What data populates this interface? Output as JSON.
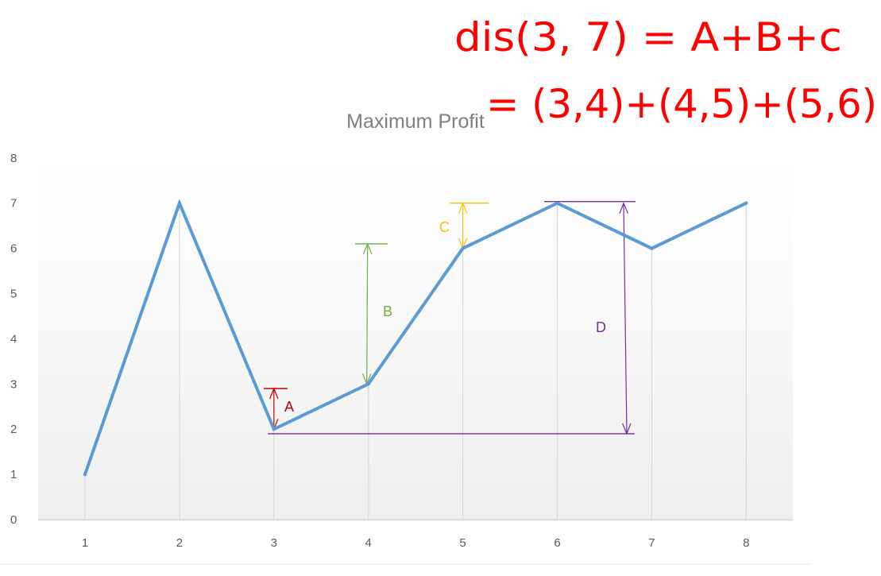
{
  "chart_data": {
    "type": "line",
    "title": "Maximum Profit",
    "xlabel": "",
    "ylabel": "",
    "categories": [
      "1",
      "2",
      "3",
      "4",
      "5",
      "6",
      "7",
      "8"
    ],
    "series": [
      {
        "values": [
          1,
          7,
          2,
          3,
          6,
          7,
          6,
          7
        ]
      }
    ],
    "ylim": [
      0,
      8
    ],
    "yticks": [
      "0",
      "1",
      "2",
      "3",
      "4",
      "5",
      "6",
      "7",
      "8"
    ],
    "grid": "vertical",
    "legend": "none",
    "colors": {
      "line": "#5b9bd5",
      "gridline": "#d9d9d9",
      "annotation_A": "#c00000",
      "annotation_B": "#70ad47",
      "annotation_C": "#ffc000",
      "annotation_D": "#7030a0",
      "handwriting": "#ff0000"
    },
    "annotations": [
      {
        "label": "A",
        "x": "3",
        "from": 2,
        "to": 2.9
      },
      {
        "label": "B",
        "x": "4",
        "from": 3,
        "to": 6.1
      },
      {
        "label": "C",
        "x": "5",
        "from": 6,
        "to": 7
      },
      {
        "label": "D",
        "x": "6.7",
        "from": 1.9,
        "to": 7
      }
    ]
  },
  "handwritten_notes": [
    "dis(3, 7) = A+B+c",
    "= (3,4)+(4,5)+(5,6)"
  ]
}
